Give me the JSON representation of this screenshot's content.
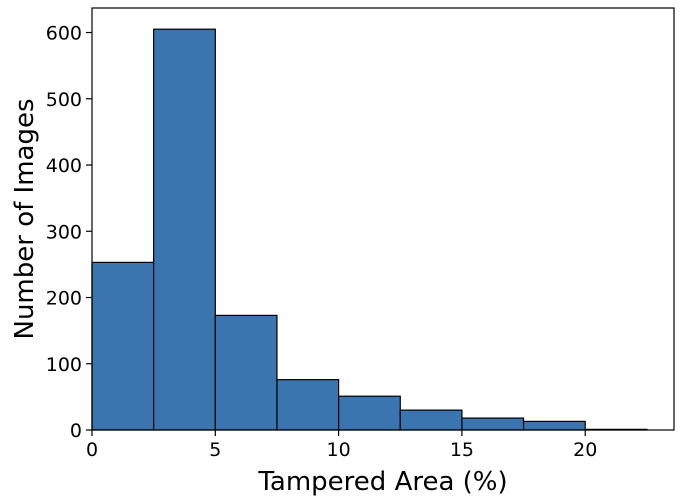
{
  "chart_data": {
    "type": "bar",
    "subtype": "histogram",
    "title": "",
    "xlabel": "Tampered Area (%)",
    "ylabel": "Number of Images",
    "bin_width": 2.5,
    "bins": [
      {
        "start": 0,
        "end": 2.5,
        "count": 253
      },
      {
        "start": 2.5,
        "end": 5,
        "count": 605
      },
      {
        "start": 5,
        "end": 7.5,
        "count": 173
      },
      {
        "start": 7.5,
        "end": 10,
        "count": 76
      },
      {
        "start": 10,
        "end": 12.5,
        "count": 51
      },
      {
        "start": 12.5,
        "end": 15,
        "count": 30
      },
      {
        "start": 15,
        "end": 17.5,
        "count": 18
      },
      {
        "start": 17.5,
        "end": 20,
        "count": 13
      },
      {
        "start": 20,
        "end": 22.5,
        "count": 1
      }
    ],
    "xlim": [
      0,
      23.6
    ],
    "ylim": [
      0,
      637
    ],
    "xticks": [
      0,
      5,
      10,
      15,
      20
    ],
    "yticks": [
      0,
      100,
      200,
      300,
      400,
      500,
      600
    ],
    "grid": false,
    "legend": "none",
    "colors": {
      "bar_fill": "#3b75af",
      "bar_edge": "#000000"
    }
  }
}
